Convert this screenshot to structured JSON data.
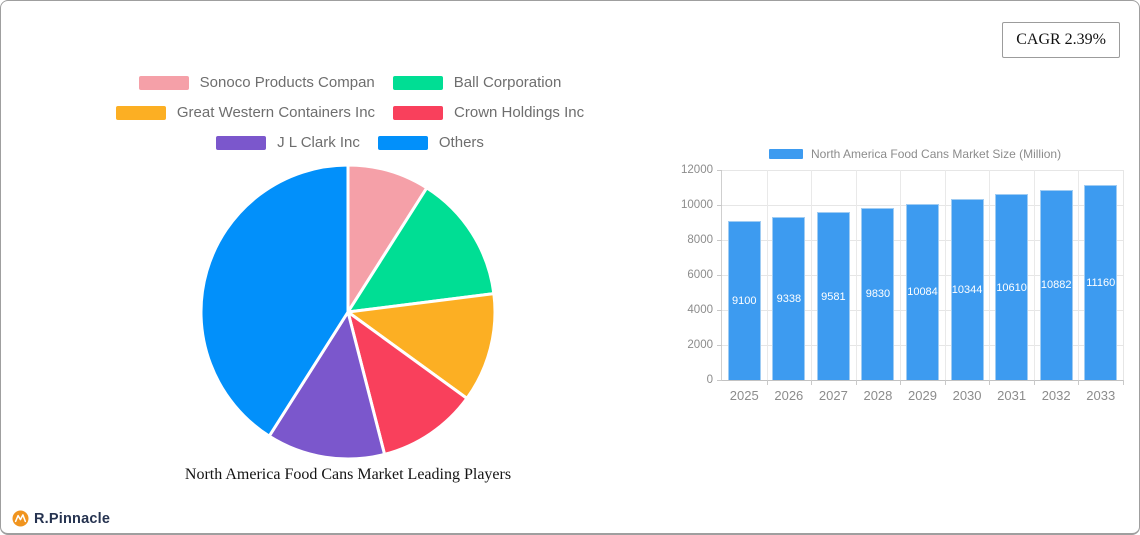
{
  "cagr_badge": {
    "label": "CAGR 2.39%"
  },
  "brand": {
    "name": "R.Pinnacle",
    "icon_color": "#F0941F"
  },
  "colors": {
    "bar_blue": "#3D9BF0",
    "axis_text": "#8C8C8C",
    "legend_text": "#6E6E6E",
    "grid": "#E6E6E6"
  },
  "chart_data": [
    {
      "type": "pie",
      "title": "North America Food Cans Market Leading Players",
      "labels": [
        "Sonoco Products Compan",
        "Ball Corporation",
        "Great Western Containers Inc",
        "Crown Holdings Inc",
        "J L  Clark Inc",
        "Others"
      ],
      "values": [
        9,
        14,
        12,
        11,
        13,
        41
      ],
      "colors": [
        "#F5A0A8",
        "#00DE94",
        "#FCAF23",
        "#F9405C",
        "#7B57CC",
        "#0290FA"
      ],
      "start_angle_deg": 0,
      "direction": "clockwise",
      "legend_position": "top",
      "legend_items_per_row": 2
    },
    {
      "type": "bar",
      "title": "North America Food Cans Market Size (Million)",
      "categories": [
        "2025",
        "2026",
        "2027",
        "2028",
        "2029",
        "2030",
        "2031",
        "2032",
        "2033"
      ],
      "values": [
        9100,
        9338,
        9581,
        9830,
        10084,
        10344,
        10610,
        10882,
        11160
      ],
      "xlabel": "",
      "ylabel": "",
      "ylim": [
        0,
        12000
      ],
      "ytick_step": 2000,
      "grid": true,
      "legend_position": "top",
      "value_labels": "inside-center"
    }
  ]
}
